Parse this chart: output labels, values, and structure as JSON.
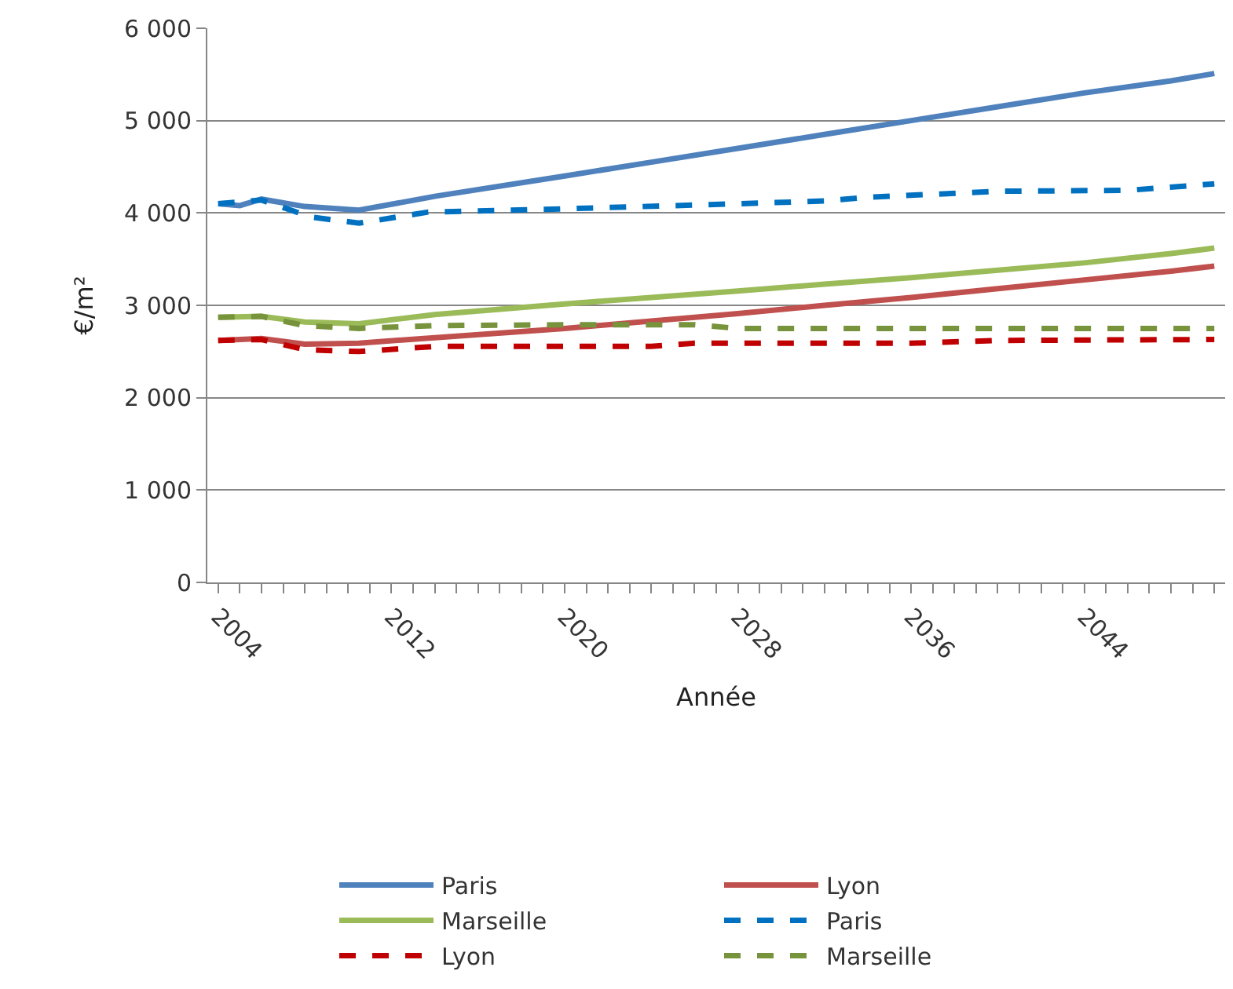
{
  "chart_data": {
    "type": "line",
    "xlabel": "Année",
    "ylabel": "€/m²",
    "xlim": [
      2003.5,
      2050.5
    ],
    "xticks": [
      {
        "value": 2004,
        "label": "2004"
      },
      {
        "value": 2005,
        "label": null
      },
      {
        "value": 2006,
        "label": null
      },
      {
        "value": 2007,
        "label": null
      },
      {
        "value": 2008,
        "label": null
      },
      {
        "value": 2009,
        "label": null
      },
      {
        "value": 2010,
        "label": null
      },
      {
        "value": 2011,
        "label": null
      },
      {
        "value": 2012,
        "label": "2012"
      },
      {
        "value": 2013,
        "label": null
      },
      {
        "value": 2014,
        "label": null
      },
      {
        "value": 2015,
        "label": null
      },
      {
        "value": 2016,
        "label": null
      },
      {
        "value": 2017,
        "label": null
      },
      {
        "value": 2018,
        "label": null
      },
      {
        "value": 2019,
        "label": null
      },
      {
        "value": 2020,
        "label": "2020"
      },
      {
        "value": 2021,
        "label": null
      },
      {
        "value": 2022,
        "label": null
      },
      {
        "value": 2023,
        "label": null
      },
      {
        "value": 2024,
        "label": null
      },
      {
        "value": 2025,
        "label": null
      },
      {
        "value": 2026,
        "label": null
      },
      {
        "value": 2027,
        "label": null
      },
      {
        "value": 2028,
        "label": "2028"
      },
      {
        "value": 2029,
        "label": null
      },
      {
        "value": 2030,
        "label": null
      },
      {
        "value": 2031,
        "label": null
      },
      {
        "value": 2032,
        "label": null
      },
      {
        "value": 2033,
        "label": null
      },
      {
        "value": 2034,
        "label": null
      },
      {
        "value": 2035,
        "label": null
      },
      {
        "value": 2036,
        "label": "2036"
      },
      {
        "value": 2037,
        "label": null
      },
      {
        "value": 2038,
        "label": null
      },
      {
        "value": 2039,
        "label": null
      },
      {
        "value": 2040,
        "label": null
      },
      {
        "value": 2041,
        "label": null
      },
      {
        "value": 2042,
        "label": null
      },
      {
        "value": 2043,
        "label": null
      },
      {
        "value": 2044,
        "label": "2044"
      },
      {
        "value": 2045,
        "label": null
      },
      {
        "value": 2046,
        "label": null
      },
      {
        "value": 2047,
        "label": null
      },
      {
        "value": 2048,
        "label": null
      },
      {
        "value": 2049,
        "label": null
      },
      {
        "value": 2050,
        "label": null
      }
    ],
    "ylim": [
      0,
      6000
    ],
    "yticks": [
      0,
      {
        "value": 1000,
        "label": "1 000"
      },
      {
        "value": 2000,
        "label": "2 000"
      },
      {
        "value": 3000,
        "label": "3 000"
      },
      {
        "value": 4000,
        "label": "4 000"
      },
      {
        "value": 5000,
        "label": "5 000"
      },
      {
        "value": 6000,
        "label": "6 000"
      }
    ],
    "grid": "y",
    "legend": "bottom",
    "marker": "none",
    "series": [
      {
        "name": "Paris",
        "color": "#4f81bd",
        "line_style": "solid",
        "x": [
          2004,
          2005,
          2006,
          2008,
          2010.5,
          2014,
          2020,
          2024,
          2028,
          2032,
          2036,
          2040,
          2044,
          2048,
          2050
        ],
        "values": [
          4100,
          4080,
          4150,
          4070,
          4030,
          4180,
          4400,
          4550,
          4700,
          4850,
          5000,
          5150,
          5300,
          5430,
          5510
        ]
      },
      {
        "name": "Lyon",
        "color": "#c0504d",
        "line_style": "solid",
        "x": [
          2004,
          2006,
          2008,
          2010.5,
          2014,
          2020,
          2024,
          2028,
          2032,
          2036,
          2040,
          2044,
          2048,
          2050
        ],
        "values": [
          2620,
          2640,
          2580,
          2590,
          2650,
          2750,
          2830,
          2910,
          3000,
          3085,
          3180,
          3275,
          3370,
          3425
        ]
      },
      {
        "name": "Marseille",
        "color": "#9bbb59",
        "line_style": "solid",
        "x": [
          2004,
          2006,
          2008,
          2010.5,
          2014,
          2020,
          2024,
          2028,
          2032,
          2036,
          2040,
          2044,
          2048,
          2050
        ],
        "values": [
          2870,
          2880,
          2820,
          2800,
          2900,
          3015,
          3085,
          3155,
          3230,
          3300,
          3380,
          3460,
          3560,
          3620
        ]
      },
      {
        "name": "Paris",
        "color": "#0070c0",
        "line_style": "dashed",
        "x": [
          2004,
          2006,
          2008.3,
          2010.5,
          2013.7,
          2020,
          2028,
          2032,
          2034,
          2040,
          2046,
          2050
        ],
        "values": [
          4100,
          4140,
          3955,
          3890,
          4010,
          4045,
          4100,
          4130,
          4170,
          4235,
          4245,
          4315
        ]
      },
      {
        "name": "Lyon",
        "color": "#c00000",
        "line_style": "dashed",
        "x": [
          2004,
          2006,
          2008,
          2010.5,
          2014,
          2020,
          2024,
          2026,
          2036,
          2040,
          2050
        ],
        "values": [
          2620,
          2630,
          2520,
          2500,
          2555,
          2555,
          2555,
          2590,
          2590,
          2620,
          2630
        ]
      },
      {
        "name": "Marseille",
        "color": "#77933c",
        "line_style": "dashed",
        "x": [
          2004,
          2006,
          2008,
          2010.5,
          2014,
          2020,
          2026,
          2028,
          2050
        ],
        "values": [
          2870,
          2880,
          2780,
          2750,
          2780,
          2790,
          2790,
          2750,
          2750
        ]
      }
    ]
  }
}
